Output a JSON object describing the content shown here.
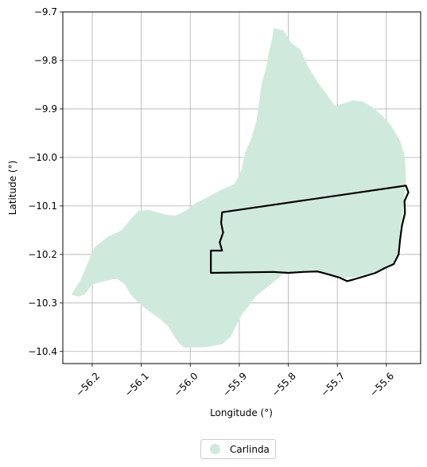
{
  "chart_data": {
    "type": "map",
    "xlabel": "Longitude (°)",
    "ylabel": "Latitude (°)",
    "xlim": [
      -56.26,
      -55.53
    ],
    "ylim": [
      -10.425,
      -9.7
    ],
    "x_ticks": [
      -56.2,
      -56.1,
      -56.0,
      -55.9,
      -55.8,
      -55.7,
      -55.6
    ],
    "x_tick_labels": [
      "−56.2",
      "−56.1",
      "−56.0",
      "−55.9",
      "−55.8",
      "−55.7",
      "−55.6"
    ],
    "y_ticks": [
      -9.7,
      -9.8,
      -9.9,
      -10.0,
      -10.1,
      -10.2,
      -10.3,
      -10.4
    ],
    "y_tick_labels": [
      "−9.7",
      "−9.8",
      "−9.9",
      "−10.0",
      "−10.1",
      "−10.2",
      "−10.3",
      "−10.4"
    ],
    "grid": true,
    "legend": {
      "position": "bottom-center",
      "entries": [
        {
          "label": "Carlinda",
          "color": "#cfeadc"
        }
      ]
    },
    "regions": [
      {
        "name": "Carlinda",
        "fill": "#cfeadc",
        "coordinates": [
          [
            -55.83,
            -9.733
          ],
          [
            -55.81,
            -9.738
          ],
          [
            -55.793,
            -9.765
          ],
          [
            -55.775,
            -9.778
          ],
          [
            -55.76,
            -9.812
          ],
          [
            -55.74,
            -9.845
          ],
          [
            -55.72,
            -9.872
          ],
          [
            -55.705,
            -9.893
          ],
          [
            -55.685,
            -9.888
          ],
          [
            -55.668,
            -9.882
          ],
          [
            -55.648,
            -9.885
          ],
          [
            -55.63,
            -9.895
          ],
          [
            -55.61,
            -9.912
          ],
          [
            -55.59,
            -9.935
          ],
          [
            -55.572,
            -9.965
          ],
          [
            -55.562,
            -10.0
          ],
          [
            -55.56,
            -10.05
          ],
          [
            -55.565,
            -10.1
          ],
          [
            -55.57,
            -10.16
          ],
          [
            -55.58,
            -10.215
          ],
          [
            -55.605,
            -10.23
          ],
          [
            -55.62,
            -10.235
          ],
          [
            -55.655,
            -10.245
          ],
          [
            -55.69,
            -10.25
          ],
          [
            -55.73,
            -10.24
          ],
          [
            -55.77,
            -10.235
          ],
          [
            -55.81,
            -10.24
          ],
          [
            -55.84,
            -10.265
          ],
          [
            -55.865,
            -10.285
          ],
          [
            -55.88,
            -10.305
          ],
          [
            -55.895,
            -10.325
          ],
          [
            -55.918,
            -10.37
          ],
          [
            -55.935,
            -10.385
          ],
          [
            -55.96,
            -10.39
          ],
          [
            -55.985,
            -10.392
          ],
          [
            -56.013,
            -10.392
          ],
          [
            -56.025,
            -10.38
          ],
          [
            -56.035,
            -10.365
          ],
          [
            -56.045,
            -10.348
          ],
          [
            -56.06,
            -10.335
          ],
          [
            -56.08,
            -10.32
          ],
          [
            -56.1,
            -10.305
          ],
          [
            -56.12,
            -10.285
          ],
          [
            -56.135,
            -10.26
          ],
          [
            -56.15,
            -10.25
          ],
          [
            -56.175,
            -10.255
          ],
          [
            -56.2,
            -10.262
          ],
          [
            -56.215,
            -10.282
          ],
          [
            -56.228,
            -10.287
          ],
          [
            -56.243,
            -10.283
          ],
          [
            -56.225,
            -10.255
          ],
          [
            -56.21,
            -10.22
          ],
          [
            -56.195,
            -10.185
          ],
          [
            -56.17,
            -10.165
          ],
          [
            -56.14,
            -10.15
          ],
          [
            -56.12,
            -10.125
          ],
          [
            -56.105,
            -10.11
          ],
          [
            -56.085,
            -10.108
          ],
          [
            -56.07,
            -10.112
          ],
          [
            -56.05,
            -10.118
          ],
          [
            -56.03,
            -10.12
          ],
          [
            -56.01,
            -10.11
          ],
          [
            -55.99,
            -10.095
          ],
          [
            -55.965,
            -10.082
          ],
          [
            -55.94,
            -10.068
          ],
          [
            -55.91,
            -10.055
          ],
          [
            -55.895,
            -10.025
          ],
          [
            -55.888,
            -9.99
          ],
          [
            -55.875,
            -9.96
          ],
          [
            -55.865,
            -9.925
          ],
          [
            -55.86,
            -9.89
          ],
          [
            -55.855,
            -9.85
          ],
          [
            -55.845,
            -9.815
          ],
          [
            -55.84,
            -9.785
          ],
          [
            -55.833,
            -9.755
          ]
        ]
      }
    ],
    "outlines": [
      {
        "stroke": "#000000",
        "coordinates": [
          [
            -55.935,
            -10.113
          ],
          [
            -55.56,
            -10.058
          ],
          [
            -55.555,
            -10.072
          ],
          [
            -55.563,
            -10.09
          ],
          [
            -55.562,
            -10.115
          ],
          [
            -55.568,
            -10.14
          ],
          [
            -55.572,
            -10.17
          ],
          [
            -55.575,
            -10.2
          ],
          [
            -55.585,
            -10.22
          ],
          [
            -55.603,
            -10.228
          ],
          [
            -55.622,
            -10.238
          ],
          [
            -55.645,
            -10.245
          ],
          [
            -55.668,
            -10.252
          ],
          [
            -55.68,
            -10.255
          ],
          [
            -55.695,
            -10.248
          ],
          [
            -55.715,
            -10.242
          ],
          [
            -55.74,
            -10.235
          ],
          [
            -55.77,
            -10.236
          ],
          [
            -55.8,
            -10.238
          ],
          [
            -55.83,
            -10.236
          ],
          [
            -55.958,
            -10.238
          ],
          [
            -55.958,
            -10.192
          ],
          [
            -55.935,
            -10.192
          ],
          [
            -55.94,
            -10.175
          ],
          [
            -55.933,
            -10.155
          ],
          [
            -55.937,
            -10.135
          ]
        ]
      }
    ]
  }
}
